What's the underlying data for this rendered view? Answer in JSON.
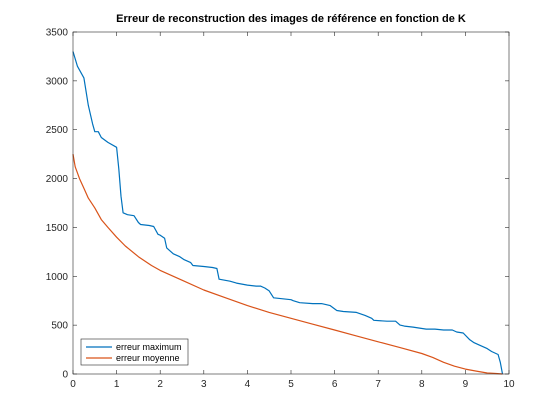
{
  "chart_data": {
    "type": "line",
    "title": "Erreur de reconstruction des images de référence en fonction de K",
    "xlabel": "",
    "ylabel": "",
    "xlim": [
      0,
      10
    ],
    "ylim": [
      0,
      3500
    ],
    "xticks": [
      0,
      1,
      2,
      3,
      4,
      5,
      6,
      7,
      8,
      9,
      10
    ],
    "yticks": [
      0,
      500,
      1000,
      1500,
      2000,
      2500,
      3000,
      3500
    ],
    "grid": false,
    "legend_position": "bottom-left",
    "series": [
      {
        "name": "erreur maximum",
        "color": "#0072bd",
        "x": [
          0,
          0.1,
          0.25,
          0.35,
          0.45,
          0.5,
          0.58,
          0.65,
          0.8,
          1.0,
          1.05,
          1.1,
          1.15,
          1.25,
          1.4,
          1.5,
          1.55,
          1.75,
          1.85,
          1.95,
          2.0,
          2.1,
          2.15,
          2.3,
          2.45,
          2.55,
          2.7,
          2.75,
          3.0,
          3.2,
          3.3,
          3.35,
          3.6,
          3.75,
          4.0,
          4.2,
          4.3,
          4.4,
          4.5,
          4.6,
          5.0,
          5.05,
          5.2,
          5.5,
          5.7,
          5.8,
          5.9,
          6.05,
          6.2,
          6.5,
          6.7,
          6.85,
          6.9,
          7.2,
          7.4,
          7.5,
          7.6,
          7.8,
          7.95,
          8.1,
          8.3,
          8.5,
          8.7,
          8.8,
          8.95,
          9.1,
          9.2,
          9.3,
          9.5,
          9.6,
          9.75,
          9.8,
          9.85
        ],
        "y": [
          3300,
          3150,
          3030,
          2750,
          2560,
          2480,
          2480,
          2420,
          2370,
          2320,
          2100,
          1820,
          1650,
          1630,
          1620,
          1550,
          1530,
          1520,
          1510,
          1430,
          1420,
          1390,
          1290,
          1230,
          1200,
          1170,
          1140,
          1110,
          1100,
          1090,
          1080,
          970,
          950,
          930,
          910,
          900,
          900,
          880,
          850,
          780,
          760,
          750,
          730,
          720,
          720,
          710,
          700,
          650,
          640,
          630,
          600,
          570,
          550,
          540,
          540,
          500,
          490,
          480,
          470,
          460,
          460,
          450,
          450,
          430,
          420,
          350,
          320,
          300,
          260,
          230,
          200,
          120,
          0
        ]
      },
      {
        "name": "erreur moyenne",
        "color": "#d95319",
        "x": [
          0,
          0.05,
          0.15,
          0.25,
          0.35,
          0.5,
          0.65,
          0.8,
          1.0,
          1.2,
          1.5,
          1.8,
          2.0,
          2.5,
          3.0,
          3.5,
          4.0,
          4.5,
          5.0,
          5.5,
          6.0,
          6.5,
          7.0,
          7.5,
          8.0,
          8.25,
          8.5,
          8.75,
          9.0,
          9.25,
          9.5,
          9.7,
          9.85
        ],
        "y": [
          2250,
          2120,
          2000,
          1900,
          1800,
          1700,
          1580,
          1500,
          1400,
          1310,
          1200,
          1110,
          1060,
          960,
          860,
          780,
          700,
          630,
          570,
          510,
          450,
          390,
          330,
          270,
          210,
          170,
          120,
          80,
          50,
          30,
          10,
          5,
          0
        ]
      }
    ]
  }
}
